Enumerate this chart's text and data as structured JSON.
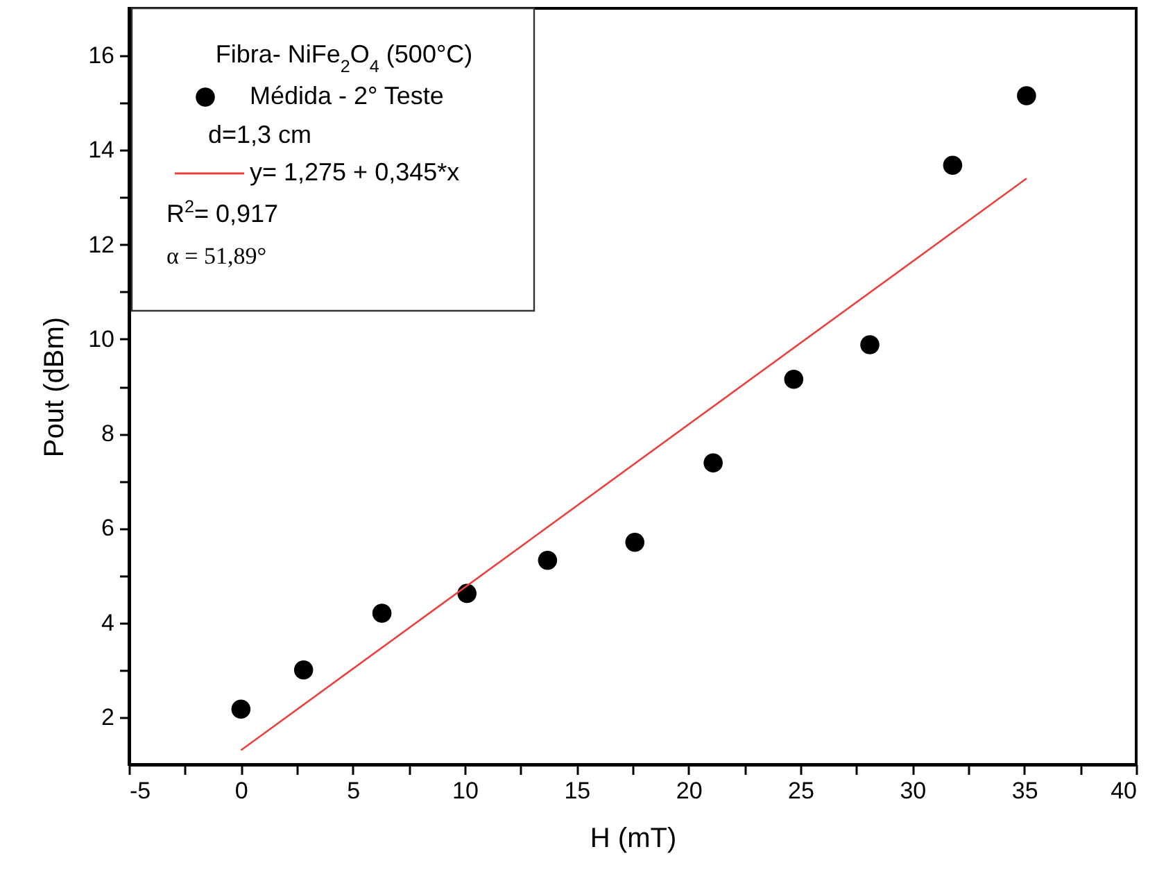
{
  "chart_data": {
    "type": "scatter",
    "xlabel": "H (mT)",
    "ylabel": "Pout (dBm)",
    "legend_title": "Fibra- NiFe$_{2}$O$_{4}$ (500°C)",
    "legend": "top left",
    "xlim": [
      -5,
      40
    ],
    "ylim": [
      1,
      17
    ],
    "xticks": [
      -5,
      {
        "value": -2.5,
        "label": null
      },
      0,
      {
        "value": 2.5,
        "label": null
      },
      5,
      {
        "value": 7.5,
        "label": null
      },
      10,
      {
        "value": 12.5,
        "label": null
      },
      15,
      {
        "value": 17.5,
        "label": null
      },
      20,
      {
        "value": 22.5,
        "label": null
      },
      25,
      {
        "value": 27.5,
        "label": null
      },
      30,
      {
        "value": 32.5,
        "label": null
      },
      35,
      {
        "value": 37.5,
        "label": null
      },
      40
    ],
    "yticks": [
      2,
      {
        "value": 3,
        "label": null
      },
      4,
      {
        "value": 5,
        "label": null
      },
      6,
      {
        "value": 7,
        "label": null
      },
      8,
      {
        "value": 9,
        "label": null
      },
      10,
      {
        "value": 11,
        "label": null
      },
      12,
      {
        "value": 13,
        "label": null
      },
      14,
      {
        "value": 15,
        "label": null
      },
      16
    ],
    "annotations": [
      "d=1,3 cm",
      "R$^{2}$= 0,917",
      "α = 51,89°"
    ],
    "series": [
      {
        "name": "Médida - 2° Teste",
        "marker": "circle",
        "color": "#000000",
        "x": [
          0,
          2.8,
          6.3,
          10.1,
          13.7,
          17.6,
          21.1,
          24.7,
          28.1,
          31.8,
          35.1
        ],
        "values": [
          2.17,
          3.0,
          4.2,
          4.62,
          5.32,
          5.7,
          7.38,
          9.15,
          9.88,
          13.68,
          15.15
        ]
      },
      {
        "name": "y=  1,275 + 0,345*x",
        "type": "line",
        "color": "#e8413e",
        "x": [
          0,
          35.1
        ],
        "values": [
          1.3,
          13.4
        ]
      }
    ]
  }
}
